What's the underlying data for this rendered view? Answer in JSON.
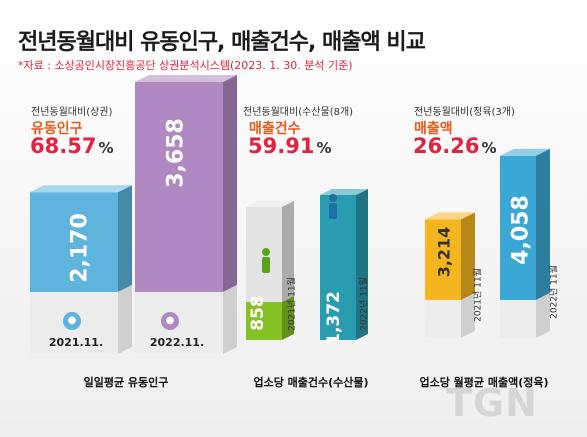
{
  "title": "전년동월대비 유동인구, 매출건수, 매출액 비교",
  "source": "*자료 : 소상공인시장진흥공단 상권분석시스템(2023. 1. 30. 분석 기준)",
  "watermark": "TGN",
  "colors": {
    "red": "#e2233f",
    "orange": "#e85a1c",
    "purple": "#b089c2",
    "blue_light": "#5fb4de",
    "green": "#84c225",
    "teal": "#2a9cb0",
    "yellow": "#f5b51f",
    "blue": "#3aa7d4"
  },
  "chart_data": [
    {
      "type": "bar",
      "comparison_label": "전년동월대비(상권)",
      "metric": "유동인구",
      "change_percent": "68.57",
      "percent_unit": "%",
      "categories": [
        "2021.11.",
        "2022.11."
      ],
      "values": [
        2170,
        3658
      ],
      "value_labels": [
        "2,170",
        "3,658"
      ],
      "icons": [
        "walking-person-icon",
        "walking-person-icon"
      ],
      "xlabel": "일일평균 유동인구"
    },
    {
      "type": "bar",
      "comparison_label": "전년동월대비(수산물(8개)",
      "metric": "매출건수",
      "change_percent": "59.91",
      "percent_unit": "%",
      "categories": [
        "2021년 11월",
        "2022년 11월"
      ],
      "values": [
        858,
        1372
      ],
      "value_labels": [
        "858",
        "1,372"
      ],
      "icons": [
        "person-figure-icon",
        "person-figure-icon"
      ],
      "xlabel": "업소당 매출건수(수산물)"
    },
    {
      "type": "bar",
      "comparison_label": "전년동월대비(정육(3개)",
      "metric": "매출액",
      "change_percent": "26.26",
      "percent_unit": "%",
      "categories": [
        "2021년 11월",
        "2022년 11월"
      ],
      "values": [
        3214,
        4058
      ],
      "value_labels": [
        "3,214",
        "4,058"
      ],
      "xlabel": "업소당 월평균 매출액(정육)"
    }
  ]
}
